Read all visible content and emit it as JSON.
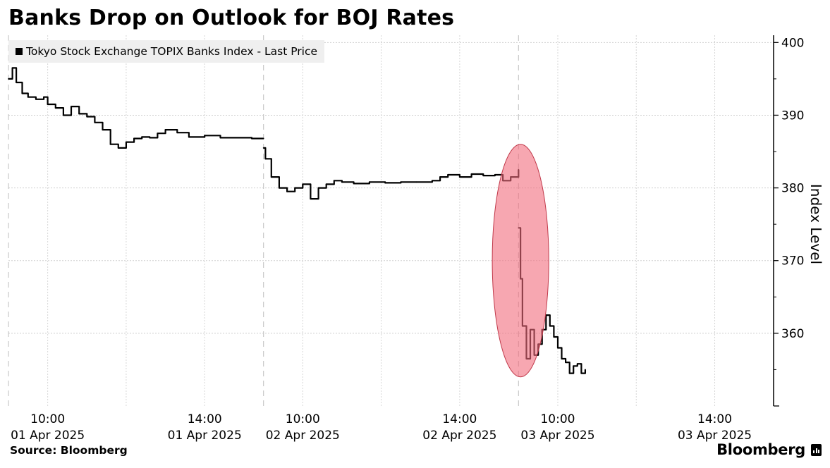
{
  "chart_data": {
    "type": "line",
    "title": "Banks Drop on Outlook for BOJ Rates",
    "xlabel": "",
    "ylabel": "Index Level",
    "ylim": [
      350,
      401
    ],
    "yticks": [
      360,
      370,
      380,
      390,
      400
    ],
    "grid": true,
    "legend_position": "top-left",
    "source": "Source: Bloomberg",
    "brand": "Bloomberg",
    "xticks": [
      {
        "time": "10:00",
        "date": "01 Apr 2025"
      },
      {
        "time": "14:00",
        "date": "01 Apr 2025"
      },
      {
        "time": "10:00",
        "date": "02 Apr 2025"
      },
      {
        "time": "14:00",
        "date": "02 Apr 2025"
      },
      {
        "time": "10:00",
        "date": "03 Apr 2025"
      },
      {
        "time": "14:00",
        "date": "03 Apr 2025"
      }
    ],
    "x_unit": "trading hours since 01 Apr 2025 09:00 (each session 09:00–15:30)",
    "series": [
      {
        "name": "Tokyo Stock Exchange TOPIX Banks Index - Last Price",
        "color": "#000000",
        "sessions": [
          {
            "date": "01 Apr 2025",
            "x": [
              0,
              0.1,
              0.2,
              0.35,
              0.5,
              0.7,
              0.9,
              1.0,
              1.2,
              1.4,
              1.6,
              1.8,
              2.0,
              2.2,
              2.4,
              2.6,
              2.8,
              3.0,
              3.2,
              3.4,
              3.6,
              3.8,
              4.0,
              4.3,
              4.6,
              5.0,
              5.4,
              5.8,
              6.2,
              6.5
            ],
            "y": [
              395.0,
              396.5,
              394.5,
              393.0,
              392.5,
              392.2,
              392.5,
              391.5,
              391.0,
              390.0,
              391.2,
              390.2,
              389.8,
              389.0,
              388.0,
              386.0,
              385.5,
              386.3,
              386.8,
              387.0,
              386.9,
              387.5,
              388.0,
              387.6,
              387.0,
              387.2,
              386.9,
              386.9,
              386.8,
              386.8
            ]
          },
          {
            "date": "02 Apr 2025",
            "x": [
              6.5,
              6.55,
              6.7,
              6.9,
              7.1,
              7.3,
              7.5,
              7.7,
              7.9,
              8.1,
              8.3,
              8.5,
              8.8,
              9.2,
              9.6,
              10.0,
              10.4,
              10.8,
              11.0,
              11.2,
              11.5,
              11.8,
              12.1,
              12.4,
              12.6,
              12.8,
              13.0
            ],
            "y": [
              385.5,
              384.0,
              381.5,
              380.0,
              379.5,
              380.0,
              380.5,
              378.5,
              380.0,
              380.5,
              381.0,
              380.8,
              380.6,
              380.8,
              380.7,
              380.8,
              380.8,
              381.0,
              381.5,
              381.8,
              381.5,
              381.9,
              381.7,
              381.8,
              381.0,
              381.5,
              382.5
            ]
          },
          {
            "date": "03 Apr 2025",
            "x": [
              13.0,
              13.05,
              13.1,
              13.2,
              13.3,
              13.4,
              13.5,
              13.6,
              13.7,
              13.8,
              13.9,
              14.0,
              14.1,
              14.2,
              14.3,
              14.4,
              14.5,
              14.6,
              14.7
            ],
            "y": [
              374.5,
              367.5,
              361.0,
              356.5,
              360.5,
              357.0,
              358.5,
              360.5,
              362.5,
              361.0,
              359.5,
              358.0,
              356.5,
              356.0,
              354.5,
              355.5,
              355.8,
              354.5,
              355.0
            ]
          }
        ]
      }
    ],
    "annotations": [
      {
        "type": "ellipse",
        "label": "highlight",
        "color": "#f26d7d",
        "x_center": 13.05,
        "y_center": 370.0,
        "x_radius": 0.72,
        "y_radius": 16.0
      }
    ]
  }
}
